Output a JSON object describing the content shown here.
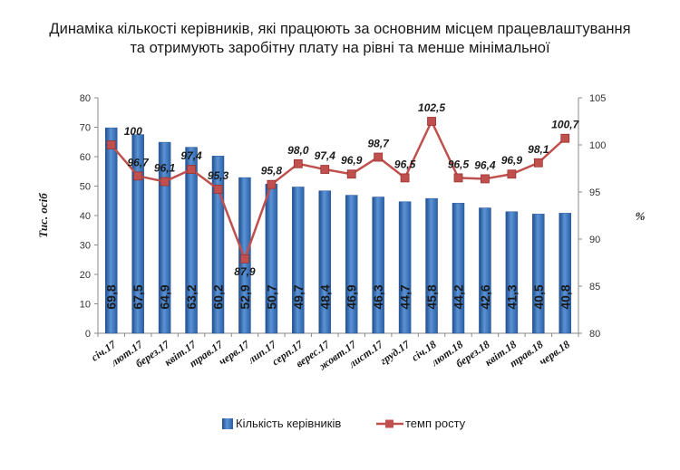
{
  "chart_data": {
    "type": "bar",
    "title_line1": "Динаміка кількості керівників, які працюють за основним місцем працевлаштування",
    "title_line2": "та отримують заробітну плату на рівні та менше мінімальної",
    "ylabel": "Тис. осіб",
    "y2label": "%",
    "ylim": [
      0,
      80
    ],
    "y2lim": [
      80,
      105
    ],
    "yticks": [
      0,
      10,
      20,
      30,
      40,
      50,
      60,
      70,
      80
    ],
    "y2ticks": [
      80,
      85,
      90,
      95,
      100,
      105
    ],
    "categories": [
      "січ.17",
      "лют.17",
      "берез.17",
      "квіт.17",
      "трав.17",
      "черв.17",
      "лип.17",
      "серп.17",
      "верес.17",
      "жовт.17",
      "лист.17",
      "груд.17",
      "січ.18",
      "лют.18",
      "берез.18",
      "квіт.18",
      "трав.18",
      "черв.18"
    ],
    "series": [
      {
        "name": "Кількість керівників",
        "type": "bar",
        "axis": "left",
        "color": "#3f7cc4",
        "values": [
          69.8,
          67.5,
          64.9,
          63.2,
          60.2,
          52.9,
          50.7,
          49.7,
          48.4,
          46.9,
          46.3,
          44.7,
          45.8,
          44.2,
          42.6,
          41.3,
          40.5,
          40.8
        ],
        "labels": [
          "69,8",
          "67,5",
          "64,9",
          "63,2",
          "60,2",
          "52,9",
          "50,7",
          "49,7",
          "48,4",
          "46,9",
          "46,3",
          "44,7",
          "45,8",
          "44,2",
          "42,6",
          "41,3",
          "40,5",
          "40,8"
        ]
      },
      {
        "name": "темп росту",
        "type": "line",
        "axis": "right",
        "color": "#c0504d",
        "values": [
          100,
          96.7,
          96.1,
          97.4,
          95.3,
          87.9,
          95.8,
          98.0,
          97.4,
          96.9,
          98.7,
          96.5,
          102.5,
          96.5,
          96.4,
          96.9,
          98.1,
          100.7
        ],
        "labels": [
          "100",
          "96,7",
          "96,1",
          "97,4",
          "95,3",
          "87,9",
          "95,8",
          "98,0",
          "97,4",
          "96,9",
          "98,7",
          "96,5",
          "102,5",
          "96,5",
          "96,4",
          "96,9",
          "98,1",
          "100,7"
        ]
      }
    ],
    "legend_position": "bottom",
    "grid": false
  }
}
